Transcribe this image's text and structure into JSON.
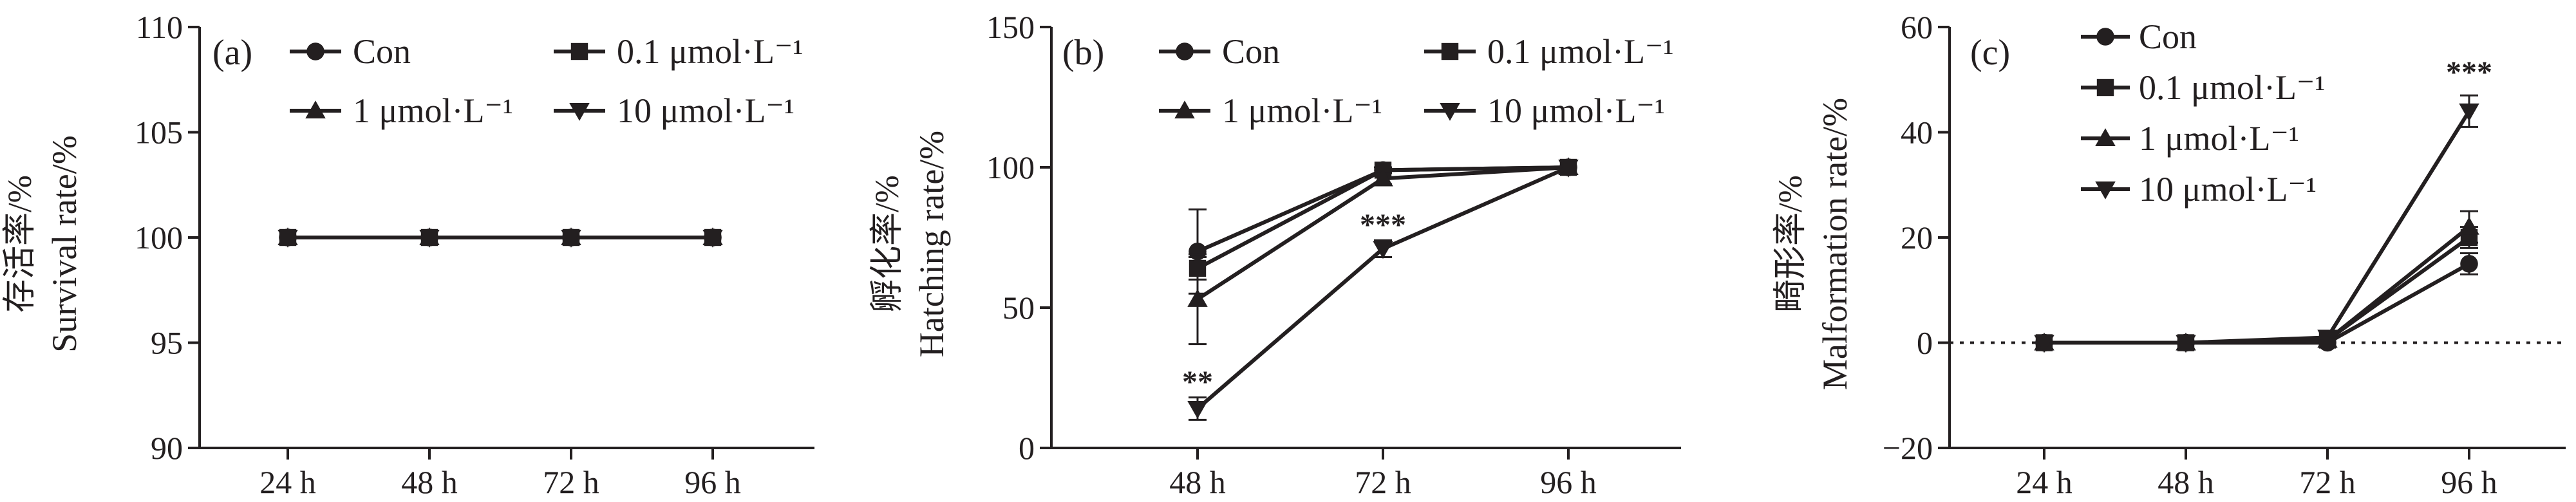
{
  "chart_data": [
    {
      "panel": "(a)",
      "type": "line",
      "ylabel_cn": "存活率/%",
      "ylabel": "Survival rate/%",
      "xlabel": "",
      "categories": [
        "24 h",
        "48 h",
        "72 h",
        "96 h"
      ],
      "ylim": [
        90,
        110
      ],
      "yticks": [
        90,
        95,
        100,
        105,
        110
      ],
      "legend": {
        "placement": "top",
        "columns": 2
      },
      "series": [
        {
          "name": "Con",
          "marker": "circle",
          "values": [
            100,
            100,
            100,
            100
          ],
          "errors": [
            0,
            0,
            0,
            0
          ]
        },
        {
          "name": "0.1 μmol·L⁻¹",
          "marker": "square",
          "values": [
            100,
            100,
            100,
            100
          ],
          "errors": [
            0,
            0,
            0,
            0
          ]
        },
        {
          "name": "1 μmol·L⁻¹",
          "marker": "triangle-up",
          "values": [
            100,
            100,
            100,
            100
          ],
          "errors": [
            0,
            0,
            0,
            0
          ]
        },
        {
          "name": "10 μmol·L⁻¹",
          "marker": "triangle-down",
          "values": [
            100,
            100,
            100,
            100
          ],
          "errors": [
            0,
            0,
            0,
            0
          ]
        }
      ],
      "annotations": []
    },
    {
      "panel": "(b)",
      "type": "line",
      "ylabel_cn": "孵化率/%",
      "ylabel": "Hatching rate/%",
      "xlabel": "",
      "categories": [
        "48 h",
        "72 h",
        "96 h"
      ],
      "ylim": [
        0,
        150
      ],
      "yticks": [
        0,
        50,
        100,
        150
      ],
      "legend": {
        "placement": "top",
        "columns": 2
      },
      "series": [
        {
          "name": "Con",
          "marker": "circle",
          "values": [
            70,
            99,
            100
          ],
          "errors": [
            15,
            1,
            0
          ]
        },
        {
          "name": "0.1 μmol·L⁻¹",
          "marker": "square",
          "values": [
            64,
            99,
            100
          ],
          "errors": [
            4,
            1,
            0
          ]
        },
        {
          "name": "1 μmol·L⁻¹",
          "marker": "triangle-up",
          "values": [
            53,
            96,
            100
          ],
          "errors": [
            16,
            2,
            0
          ]
        },
        {
          "name": "10 μmol·L⁻¹",
          "marker": "triangle-down",
          "values": [
            14,
            71,
            100
          ],
          "errors": [
            4,
            3,
            0
          ]
        }
      ],
      "annotations": [
        {
          "text": "**",
          "category": "48 h",
          "y": 19
        },
        {
          "text": "***",
          "category": "72 h",
          "y": 75
        }
      ]
    },
    {
      "panel": "(c)",
      "type": "line",
      "ylabel_cn": "畸形率/%",
      "ylabel": "Malformation rate/%",
      "xlabel": "",
      "categories": [
        "24 h",
        "48 h",
        "72 h",
        "96 h"
      ],
      "ylim": [
        -20,
        60
      ],
      "yticks": [
        -20,
        0,
        20,
        40,
        60
      ],
      "reference_line": 0,
      "legend": {
        "placement": "top-left",
        "columns": 1
      },
      "series": [
        {
          "name": "Con",
          "marker": "circle",
          "values": [
            0,
            0,
            0,
            15
          ],
          "errors": [
            0,
            0,
            0,
            2
          ]
        },
        {
          "name": "0.1 μmol·L⁻¹",
          "marker": "square",
          "values": [
            0,
            0,
            0.5,
            20
          ],
          "errors": [
            0,
            0,
            0,
            2
          ]
        },
        {
          "name": "1 μmol·L⁻¹",
          "marker": "triangle-up",
          "values": [
            0,
            0,
            0.5,
            22
          ],
          "errors": [
            0,
            0,
            0,
            3
          ]
        },
        {
          "name": "10 μmol·L⁻¹",
          "marker": "triangle-down",
          "values": [
            0,
            0,
            1,
            44
          ],
          "errors": [
            0,
            0,
            0,
            3
          ]
        }
      ],
      "annotations": [
        {
          "text": "***",
          "category": "96 h",
          "y": 49
        }
      ]
    }
  ]
}
